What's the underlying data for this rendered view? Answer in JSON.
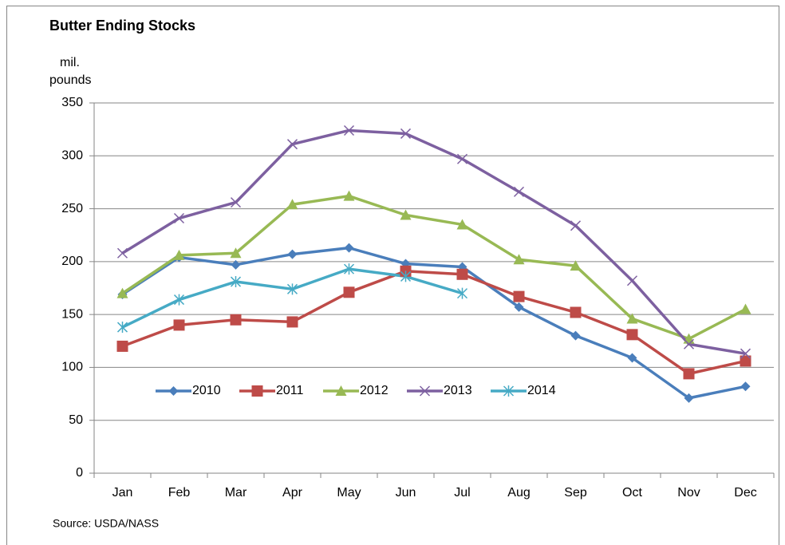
{
  "chart_data": {
    "type": "line",
    "title": "Butter Ending Stocks",
    "y_label": [
      "mil.",
      "pounds"
    ],
    "source": "Source:  USDA/NASS",
    "categories": [
      "Jan",
      "Feb",
      "Mar",
      "Apr",
      "May",
      "Jun",
      "Jul",
      "Aug",
      "Sep",
      "Oct",
      "Nov",
      "Dec"
    ],
    "series": [
      {
        "name": "2010",
        "color": "#4a7ebb",
        "marker": "diamond",
        "values": [
          169,
          204,
          197,
          207,
          213,
          198,
          195,
          157,
          130,
          109,
          71,
          82
        ]
      },
      {
        "name": "2011",
        "color": "#be4b48",
        "marker": "square",
        "values": [
          120,
          140,
          145,
          143,
          171,
          191,
          188,
          167,
          152,
          131,
          94,
          106
        ]
      },
      {
        "name": "2012",
        "color": "#98b954",
        "marker": "triangle",
        "values": [
          170,
          206,
          208,
          254,
          262,
          244,
          235,
          202,
          196,
          146,
          127,
          155
        ]
      },
      {
        "name": "2013",
        "color": "#7d60a0",
        "marker": "x",
        "values": [
          208,
          241,
          256,
          311,
          324,
          321,
          297,
          266,
          234,
          182,
          122,
          113
        ]
      },
      {
        "name": "2014",
        "color": "#46aac5",
        "marker": "asterisk",
        "values": [
          138,
          164,
          181,
          174,
          193,
          186,
          170,
          null,
          null,
          null,
          null,
          null
        ]
      }
    ],
    "ylim": [
      0,
      350
    ],
    "yticks": [
      0,
      50,
      100,
      150,
      200,
      250,
      300,
      350
    ],
    "grid": true
  }
}
